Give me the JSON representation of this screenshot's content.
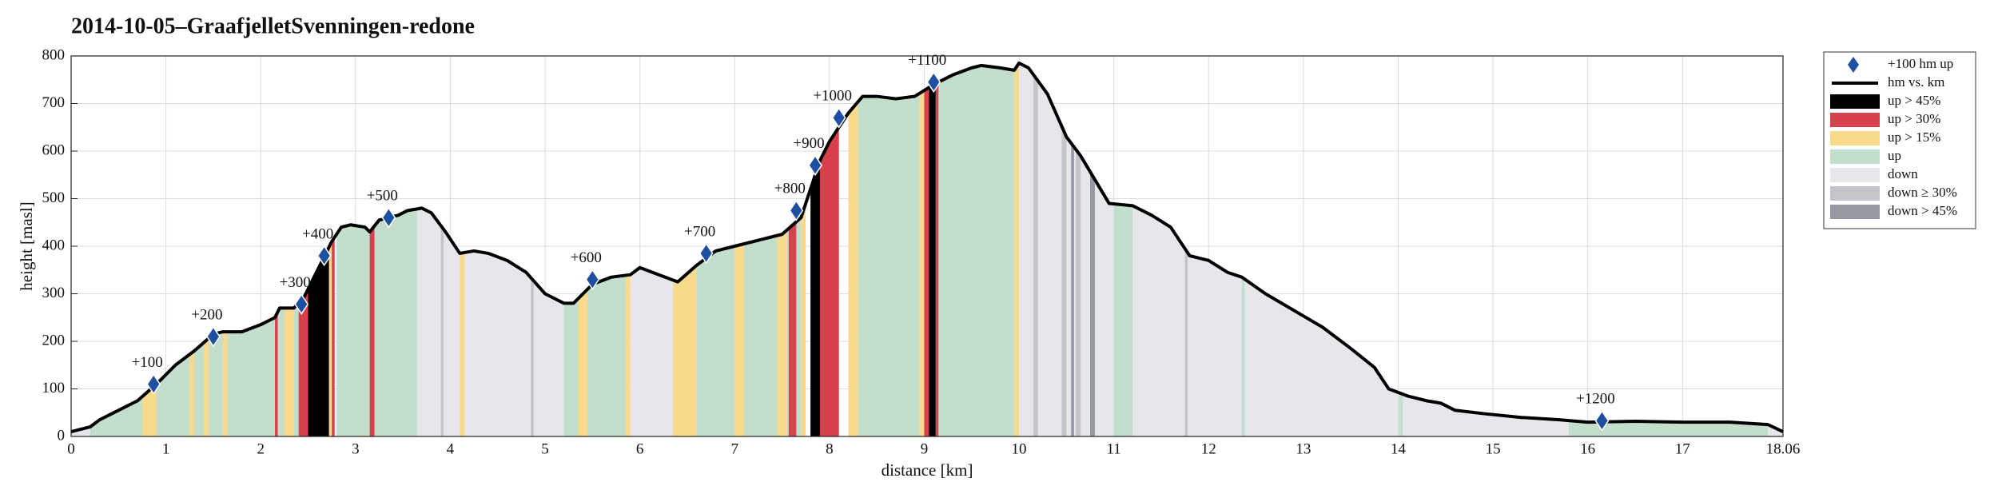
{
  "chart_data": {
    "type": "elevation-profile",
    "title": "2014-10-05–GraafjelletSvenningen-redone",
    "x_label": "distance [km]",
    "y_label": "height [masl]",
    "xlim": [
      0,
      18.06
    ],
    "ylim": [
      0,
      800
    ],
    "xticks": [
      0,
      1,
      2,
      3,
      4,
      5,
      6,
      7,
      8,
      9,
      10,
      11,
      12,
      13,
      14,
      15,
      16,
      17,
      18.06
    ],
    "yticks": [
      0,
      100,
      200,
      300,
      400,
      500,
      600,
      700,
      800
    ],
    "grid": true,
    "legend": "outside-right",
    "profile": {
      "name": "hm vs. km",
      "color": "#000000",
      "x": [
        0,
        0.2,
        0.3,
        0.5,
        0.7,
        0.9,
        1.1,
        1.3,
        1.5,
        1.6,
        1.8,
        2.0,
        2.15,
        2.2,
        2.35,
        2.45,
        2.6,
        2.75,
        2.85,
        2.95,
        3.1,
        3.15,
        3.25,
        3.45,
        3.55,
        3.7,
        3.8,
        3.95,
        4.1,
        4.25,
        4.4,
        4.6,
        4.8,
        5.0,
        5.2,
        5.3,
        5.5,
        5.7,
        5.9,
        6.0,
        6.2,
        6.4,
        6.6,
        6.8,
        7.0,
        7.3,
        7.5,
        7.7,
        7.8,
        7.9,
        8.0,
        8.2,
        8.35,
        8.5,
        8.7,
        8.9,
        9.1,
        9.3,
        9.5,
        9.6,
        9.8,
        9.95,
        10.0,
        10.1,
        10.3,
        10.5,
        10.65,
        10.8,
        10.95,
        11.2,
        11.4,
        11.6,
        11.8,
        12.0,
        12.2,
        12.35,
        12.6,
        12.9,
        13.2,
        13.5,
        13.75,
        13.9,
        14.1,
        14.3,
        14.45,
        14.6,
        14.9,
        15.3,
        15.7,
        16.0,
        16.5,
        17.0,
        17.5,
        17.9,
        18.06
      ],
      "y": [
        10,
        20,
        35,
        55,
        75,
        110,
        150,
        180,
        215,
        220,
        220,
        235,
        250,
        270,
        270,
        290,
        350,
        410,
        440,
        445,
        440,
        430,
        455,
        465,
        475,
        480,
        470,
        430,
        385,
        390,
        385,
        370,
        345,
        300,
        280,
        280,
        320,
        335,
        340,
        355,
        340,
        325,
        360,
        390,
        400,
        415,
        425,
        460,
        520,
        580,
        620,
        680,
        715,
        715,
        710,
        715,
        740,
        760,
        775,
        780,
        775,
        770,
        785,
        775,
        720,
        630,
        590,
        540,
        490,
        485,
        465,
        440,
        380,
        370,
        345,
        335,
        300,
        265,
        230,
        185,
        145,
        100,
        85,
        75,
        70,
        55,
        48,
        40,
        35,
        30,
        32,
        30,
        30,
        25,
        10
      ]
    },
    "markers": {
      "name": "+100 hm up",
      "color": "#1f4fa0",
      "x": [
        0.87,
        1.5,
        2.43,
        2.67,
        3.35,
        5.5,
        6.7,
        7.65,
        7.85,
        8.1,
        9.1,
        16.15
      ],
      "values": [
        110,
        210,
        278,
        380,
        460,
        330,
        385,
        475,
        570,
        670,
        745,
        33
      ],
      "labels": [
        "+100",
        "+200",
        "+300",
        "+400",
        "+500",
        "+600",
        "+700",
        "+800",
        "+900",
        "+1000",
        "+1100",
        "+1200"
      ]
    },
    "series": [
      {
        "name": "up > 45%",
        "color": "#000000",
        "intervals": [
          [
            2.5,
            2.72
          ],
          [
            7.8,
            7.9
          ],
          [
            9.05,
            9.12
          ]
        ]
      },
      {
        "name": "up > 30%",
        "color": "#d9404e",
        "intervals": [
          [
            2.15,
            2.18
          ],
          [
            2.4,
            2.5
          ],
          [
            2.75,
            2.78
          ],
          [
            3.15,
            3.2
          ],
          [
            7.57,
            7.65
          ],
          [
            7.9,
            8.1
          ],
          [
            9.0,
            9.05
          ],
          [
            9.12,
            9.15
          ]
        ]
      },
      {
        "name": "up > 15%",
        "color": "#f9d98b",
        "intervals": [
          [
            0.75,
            0.9
          ],
          [
            1.25,
            1.3
          ],
          [
            1.4,
            1.45
          ],
          [
            1.6,
            1.65
          ],
          [
            2.25,
            2.35
          ],
          [
            2.7,
            2.75
          ],
          [
            4.1,
            4.15
          ],
          [
            5.35,
            5.45
          ],
          [
            5.85,
            5.9
          ],
          [
            6.35,
            6.6
          ],
          [
            7.0,
            7.1
          ],
          [
            7.45,
            7.55
          ],
          [
            7.7,
            7.75
          ],
          [
            8.2,
            8.3
          ],
          [
            8.95,
            9.0
          ],
          [
            9.95,
            10.0
          ]
        ]
      },
      {
        "name": "up",
        "color": "#c3dfcc",
        "intervals": [
          [
            0.2,
            2.4
          ],
          [
            2.8,
            3.65
          ],
          [
            5.2,
            5.9
          ],
          [
            6.4,
            7.7
          ],
          [
            8.3,
            9.95
          ],
          [
            11.0,
            11.2
          ],
          [
            12.35,
            12.38
          ],
          [
            14.0,
            14.05
          ],
          [
            15.8,
            17.9
          ]
        ]
      },
      {
        "name": "down",
        "color": "#e6e7eb",
        "intervals": [
          [
            0,
            0.2
          ],
          [
            3.65,
            5.2
          ],
          [
            5.9,
            6.4
          ],
          [
            9.95,
            18.06
          ]
        ]
      },
      {
        "name": "down ≥ 30%",
        "color": "#c3c5cb",
        "intervals": [
          [
            3.9,
            3.93
          ],
          [
            4.85,
            4.88
          ],
          [
            10.15,
            10.2
          ],
          [
            10.45,
            10.5
          ],
          [
            10.6,
            10.65
          ],
          [
            11.75,
            11.78
          ]
        ]
      },
      {
        "name": "down > 45%",
        "color": "#9599a1",
        "intervals": [
          [
            10.55,
            10.58
          ],
          [
            10.75,
            10.8
          ]
        ]
      }
    ]
  }
}
